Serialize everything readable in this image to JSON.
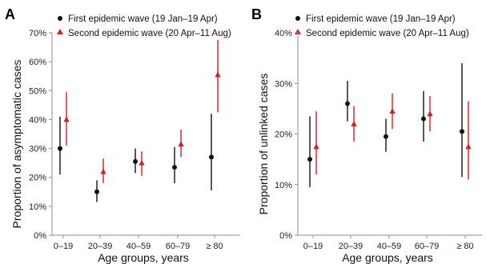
{
  "colors": {
    "first": "#111111",
    "second": "#d41c24",
    "axis": "#8c8c8c"
  },
  "chart_data": [
    {
      "type": "scatter",
      "panel": "A",
      "title": "",
      "xlabel": "Age groups, years",
      "ylabel": "Proportion of asymptomatic cases",
      "categories": [
        "0–19",
        "20–39",
        "40–59",
        "60–79",
        "≥ 80"
      ],
      "ylim": [
        0,
        70
      ],
      "yticks": [
        0,
        10,
        20,
        30,
        40,
        50,
        60,
        70
      ],
      "ytick_labels": [
        "0%",
        "10%",
        "20%",
        "30%",
        "40%",
        "50%",
        "60%",
        "70%"
      ],
      "legend_position": "top-left",
      "series": [
        {
          "name": "First epidemic wave (19 Jan–19 Apr)",
          "marker": "circle",
          "values": [
            30,
            15,
            25.5,
            23.5,
            27
          ],
          "lower": [
            21,
            11.5,
            21.5,
            18,
            15.5
          ],
          "upper": [
            41,
            19,
            30,
            30.5,
            42
          ]
        },
        {
          "name": "Second epidemic wave (20 Apr–11 Aug)",
          "marker": "triangle",
          "values": [
            40,
            22,
            25,
            31.5,
            55.5
          ],
          "lower": [
            31,
            18,
            20.5,
            27,
            42.5
          ],
          "upper": [
            49.5,
            26.5,
            29,
            36.5,
            67.5
          ]
        }
      ]
    },
    {
      "type": "scatter",
      "panel": "B",
      "title": "",
      "xlabel": "Age groups, years",
      "ylabel": "Proportion of unlinked cases",
      "categories": [
        "0–19",
        "20–39",
        "40–59",
        "60–79",
        "≥ 80"
      ],
      "ylim": [
        0,
        40
      ],
      "yticks": [
        0,
        10,
        20,
        30,
        40
      ],
      "ytick_labels": [
        "0%",
        "10%",
        "20%",
        "30%",
        "40%"
      ],
      "legend_position": "top-left",
      "series": [
        {
          "name": "First epidemic wave (19 Jan–19 Apr)",
          "marker": "circle",
          "values": [
            15,
            26,
            19.5,
            23,
            20.5
          ],
          "lower": [
            9.5,
            22.5,
            16.5,
            18.5,
            11.5
          ],
          "upper": [
            23.5,
            30.5,
            23,
            28.5,
            34
          ]
        },
        {
          "name": "Second epidemic wave (20 Apr–11 Aug)",
          "marker": "triangle",
          "values": [
            17.5,
            22,
            24.5,
            24,
            17.5
          ],
          "lower": [
            12,
            18.5,
            21,
            20.5,
            11
          ],
          "upper": [
            24.5,
            25.5,
            28,
            27.5,
            26.5
          ]
        }
      ]
    }
  ]
}
